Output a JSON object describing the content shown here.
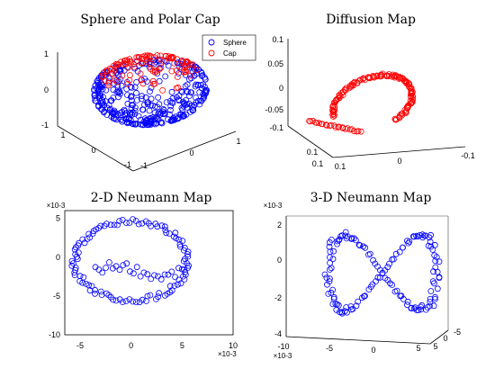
{
  "colors": {
    "sphere": "#0000ff",
    "cap": "#ff0000",
    "axis": "#000000"
  },
  "chart_data": [
    {
      "type": "scatter",
      "projection": "3d",
      "title": "Sphere and Polar Cap",
      "legend": {
        "placement": "top-right",
        "entries": [
          "Sphere",
          "Cap"
        ]
      },
      "series": [
        {
          "name": "Sphere",
          "marker": "circle",
          "color": "#0000ff",
          "shape": "unit sphere point cloud",
          "count": 520
        },
        {
          "name": "Cap",
          "marker": "circle",
          "color": "#ff0000",
          "shape": "polar cap, z >= 0.5",
          "count": 110
        }
      ],
      "xlim": [
        -1,
        1
      ],
      "ylim": [
        -1,
        1
      ],
      "zlim": [
        -1,
        1
      ],
      "xticks": [
        "-1",
        "0",
        "1"
      ],
      "yticks": [
        "-1",
        "0",
        "1"
      ],
      "zticks": [
        "-1",
        "0",
        "1"
      ]
    },
    {
      "type": "scatter",
      "projection": "3d",
      "title": "Diffusion Map",
      "series": [
        {
          "marker": "circle",
          "color": "#ff0000",
          "shape": "open arc (horseshoe)"
        }
      ],
      "zticks": [
        "0.1",
        "0.05",
        "0",
        "-0.05",
        "-0.1"
      ],
      "xticks": [
        "0.1",
        "0",
        "-0.1"
      ],
      "yticks": [
        "0.1",
        "0.1"
      ]
    },
    {
      "type": "scatter",
      "title": "2-D Neumann Map",
      "x_multiplier": "×10-3",
      "y_multiplier": "×10-3",
      "xlim": [
        -6.5,
        10
      ],
      "ylim": [
        -10,
        6
      ],
      "xticks": [
        "-5",
        "0",
        "5",
        "10"
      ],
      "yticks": [
        "5",
        "0",
        "-5",
        "-10"
      ],
      "series": [
        {
          "marker": "circle",
          "color": "#0000ff",
          "shape": "ellipse ring with inner band",
          "center": [
            0,
            -0.5
          ],
          "radii": [
            5.8,
            5.3
          ]
        }
      ]
    },
    {
      "type": "scatter",
      "projection": "3d",
      "title": "3-D Neumann Map",
      "z_multiplier": "×10-3",
      "x_multiplier": "×10-3",
      "zticks": [
        "2",
        "0",
        "-2",
        "-4"
      ],
      "xticks": [
        "-10",
        "-5",
        "0",
        "5"
      ],
      "yticks": [
        "5",
        "0",
        "-5"
      ],
      "series": [
        {
          "marker": "circle",
          "color": "#0000ff",
          "shape": "figure-eight (bow-tie)"
        }
      ]
    }
  ]
}
